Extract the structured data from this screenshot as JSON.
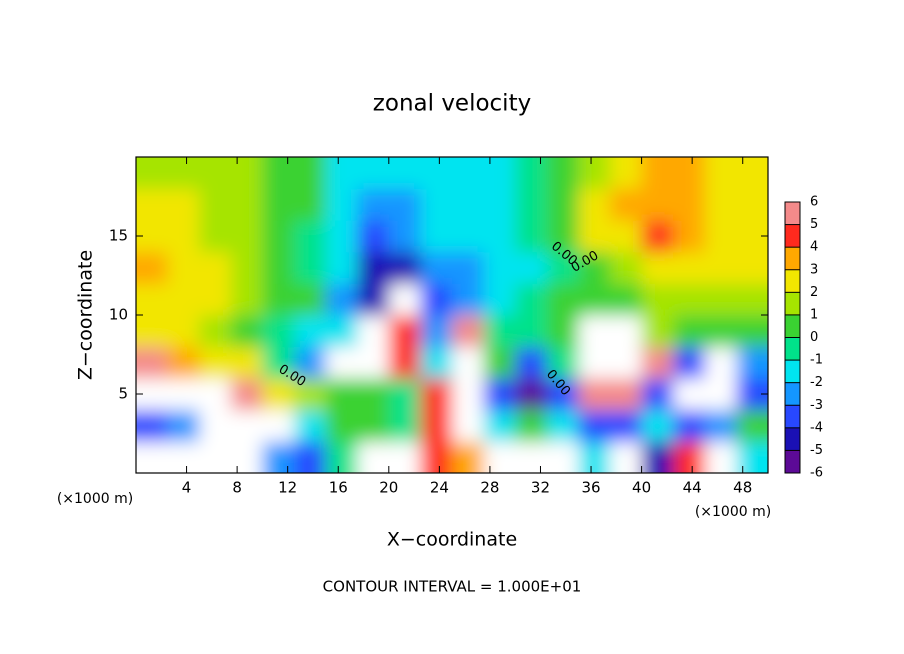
{
  "chart_data": {
    "type": "contour",
    "title": "zonal velocity",
    "xlabel": "X−coordinate",
    "ylabel": "Z−coordinate",
    "x_unit_label": "(×1000 m)",
    "footer": "CONTOUR INTERVAL = 1.000E+01",
    "contour_labels": [
      "0.00",
      "0.00",
      "0.00",
      "0.00"
    ],
    "xlim": [
      0,
      50
    ],
    "ylim": [
      0,
      20
    ],
    "xticks": [
      4,
      8,
      12,
      16,
      20,
      24,
      28,
      32,
      36,
      40,
      44,
      48
    ],
    "yticks": [
      5,
      10,
      15
    ],
    "levels": [
      -6,
      -5,
      -4,
      -3,
      -2,
      -1,
      0,
      1,
      2,
      3,
      4,
      5,
      6
    ],
    "colors": [
      "#5c0a96",
      "#1a10b4",
      "#2848ff",
      "#1496ff",
      "#00e4f0",
      "#00e28a",
      "#3ad232",
      "#a6e400",
      "#f2e600",
      "#ffa800",
      "#ff2a1e",
      "#f48a8a"
    ],
    "over_color": "#ffffff",
    "x": [
      1.25,
      3.75,
      6.25,
      8.75,
      11.25,
      13.75,
      16.25,
      18.75,
      21.25,
      23.75,
      26.25,
      28.75,
      31.25,
      33.75,
      36.25,
      38.75,
      41.25,
      43.75,
      46.25,
      48.75
    ],
    "y": [
      1,
      3,
      5,
      7,
      9,
      11,
      13,
      15,
      17,
      19
    ],
    "z": [
      [
        7,
        7,
        7,
        7,
        -3,
        -4,
        -1,
        7,
        7,
        4,
        3,
        7,
        7,
        7,
        -2,
        7,
        -5,
        4,
        7,
        -2
      ],
      [
        -4,
        -3,
        7,
        7,
        7,
        -2,
        0,
        0,
        -1,
        4.5,
        7,
        -2,
        0,
        -2,
        -4,
        -4,
        -2,
        -3.5,
        -3,
        0
      ],
      [
        7,
        7,
        7,
        5,
        2,
        1,
        0.5,
        0.5,
        -1,
        4,
        7,
        -4,
        -6,
        -4,
        5,
        5,
        -4,
        7,
        7,
        -4
      ],
      [
        5,
        3,
        2.5,
        2,
        -1,
        -3,
        7,
        7,
        4,
        -2,
        7,
        0,
        -4,
        -1,
        7,
        7,
        5,
        -4,
        7,
        -3
      ],
      [
        2.5,
        2,
        1,
        0.5,
        -0.5,
        -1.5,
        -2,
        7,
        4,
        -3,
        5,
        -0.5,
        -1,
        0,
        7,
        7,
        1,
        0.5,
        0.5,
        0
      ],
      [
        2.5,
        2.5,
        2,
        1.5,
        0.5,
        0,
        -3,
        -5,
        7,
        -3.5,
        -3,
        -2,
        -0.5,
        0.5,
        0.5,
        0.5,
        1,
        1.5,
        1.5,
        1.5
      ],
      [
        3,
        2,
        2,
        1.5,
        0.5,
        -0.5,
        -2,
        -5,
        -4.5,
        -3,
        -2.5,
        -2,
        -1.5,
        -0.5,
        0.5,
        1.5,
        2,
        2,
        2,
        2
      ],
      [
        2,
        2,
        1.5,
        1.5,
        0.5,
        -0.5,
        -1.5,
        -3.5,
        -3,
        -2,
        -2,
        -1.5,
        -1,
        0,
        2,
        2.5,
        4.5,
        3.5,
        2.5,
        2.5
      ],
      [
        2,
        2,
        1.5,
        1.5,
        0.5,
        0,
        -1.5,
        -3,
        -3,
        -2,
        -2,
        -2,
        -1,
        0.5,
        2,
        3,
        3.5,
        3.5,
        2.5,
        2.5
      ],
      [
        1.5,
        1.5,
        1.5,
        1,
        0.5,
        0,
        -1.5,
        -2,
        -2,
        -2,
        -2,
        -1.5,
        -1,
        0,
        1.5,
        2.5,
        3,
        3,
        2.5,
        2
      ]
    ]
  }
}
